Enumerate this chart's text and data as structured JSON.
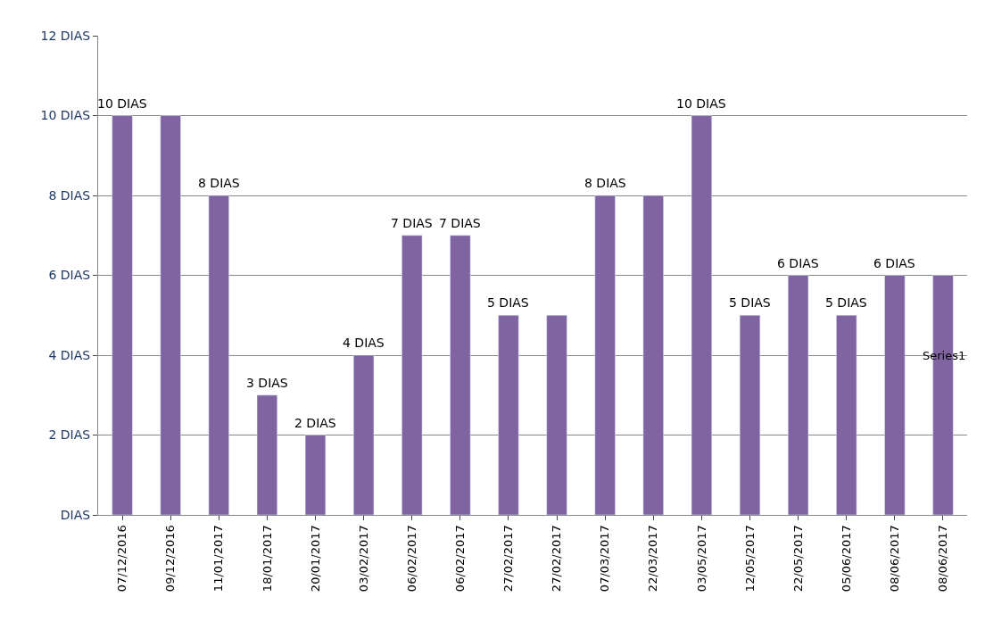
{
  "chart_data": {
    "type": "bar",
    "categories": [
      "07/12/2016",
      "09/12/2016",
      "11/01/2017",
      "18/01/2017",
      "20/01/2017",
      "03/02/2017",
      "06/02/2017",
      "06/02/2017",
      "27/02/2017",
      "27/02/2017",
      "07/03/2017",
      "22/03/2017",
      "03/05/2017",
      "12/05/2017",
      "22/05/2017",
      "05/06/2017",
      "08/06/2017",
      "08/06/2017"
    ],
    "values": [
      10,
      10,
      8,
      3,
      2,
      4,
      7,
      7,
      5,
      5,
      8,
      8,
      10,
      5,
      6,
      5,
      6,
      6
    ],
    "value_labels": [
      "10 DIAS",
      null,
      "8 DIAS",
      "3 DIAS",
      "2 DIAS",
      "4 DIAS",
      "7 DIAS",
      "7 DIAS",
      "5 DIAS",
      null,
      "8 DIAS",
      null,
      "10 DIAS",
      "5 DIAS",
      "6 DIAS",
      "5 DIAS",
      "6 DIAS",
      null
    ],
    "color": "#8064a2",
    "ylim": [
      0,
      12
    ],
    "yticks": [
      {
        "value": 0,
        "label": "DIAS"
      },
      {
        "value": 2,
        "label": "2 DIAS"
      },
      {
        "value": 4,
        "label": "4 DIAS"
      },
      {
        "value": 6,
        "label": "6 DIAS"
      },
      {
        "value": 8,
        "label": "8 DIAS"
      },
      {
        "value": 10,
        "label": "10 DIAS"
      },
      {
        "value": 12,
        "label": "12 DIAS"
      }
    ],
    "grid": "y",
    "annotations": [
      "Series1"
    ]
  }
}
